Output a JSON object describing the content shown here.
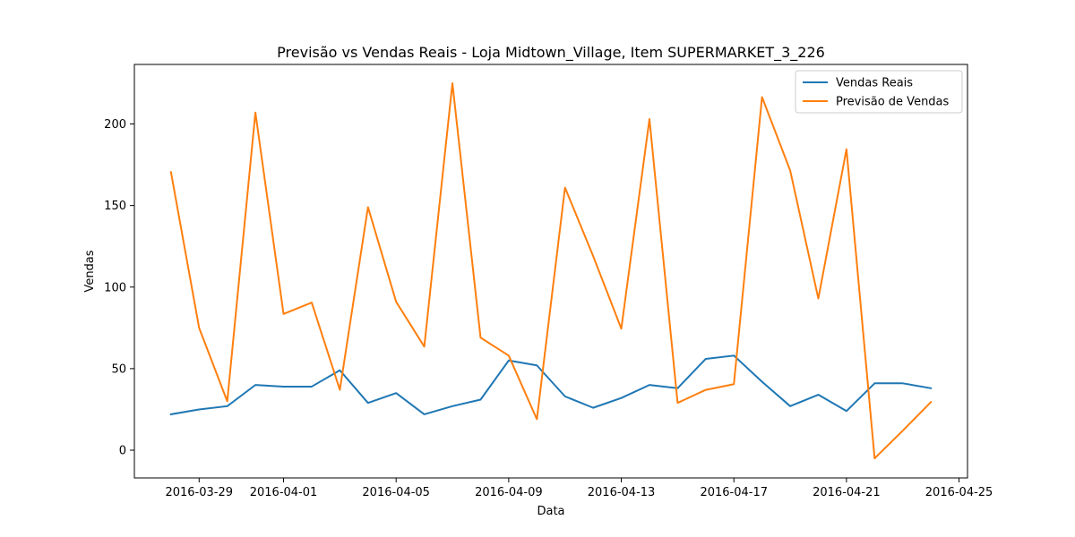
{
  "chart_data": {
    "type": "line",
    "title": "Previsão vs Vendas Reais - Loja Midtown_Village, Item SUPERMARKET_3_226",
    "xlabel": "Data",
    "ylabel": "Vendas",
    "x": [
      "2016-03-28",
      "2016-03-29",
      "2016-03-30",
      "2016-03-31",
      "2016-04-01",
      "2016-04-02",
      "2016-04-03",
      "2016-04-04",
      "2016-04-05",
      "2016-04-06",
      "2016-04-07",
      "2016-04-08",
      "2016-04-09",
      "2016-04-10",
      "2016-04-11",
      "2016-04-12",
      "2016-04-13",
      "2016-04-14",
      "2016-04-15",
      "2016-04-16",
      "2016-04-17",
      "2016-04-18",
      "2016-04-19",
      "2016-04-20",
      "2016-04-21",
      "2016-04-22",
      "2016-04-23",
      "2016-04-24"
    ],
    "series": [
      {
        "name": "Vendas Reais",
        "color": "#1f77b4",
        "values": [
          22,
          25,
          27,
          40,
          39,
          39,
          49,
          29,
          35,
          22,
          27,
          31,
          55,
          52,
          33,
          26,
          32,
          40,
          38,
          56,
          58,
          42,
          27,
          34,
          24,
          41,
          41,
          38
        ]
      },
      {
        "name": "Previsão de Vendas",
        "color": "#ff7f0e",
        "values": [
          170.5,
          75,
          30,
          207,
          83.5,
          90.5,
          37,
          149,
          91,
          63.5,
          225,
          69,
          58,
          19,
          161,
          119,
          74.5,
          203,
          29,
          37,
          40.5,
          216.5,
          171.5,
          93,
          184.5,
          -5,
          12,
          29.5
        ]
      }
    ],
    "xticks": [
      "2016-03-29",
      "2016-04-01",
      "2016-04-05",
      "2016-04-09",
      "2016-04-13",
      "2016-04-17",
      "2016-04-21",
      "2016-04-25"
    ],
    "yticks": [
      0,
      50,
      100,
      150,
      200
    ],
    "xlim": [
      "2016-03-26.7",
      "2016-04-25.3"
    ],
    "ylim": [
      -17,
      236.5
    ],
    "grid": false,
    "legend": "top-right"
  }
}
